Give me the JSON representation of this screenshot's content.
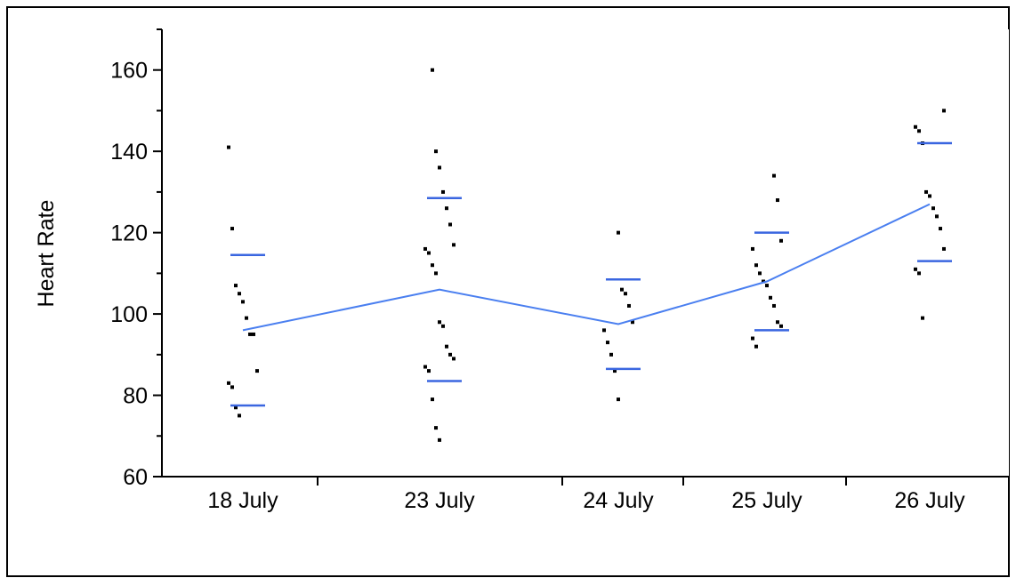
{
  "chart_data": {
    "type": "scatter",
    "title": "",
    "xlabel": "",
    "ylabel": "Heart Rate",
    "ylim": [
      60,
      170
    ],
    "yticks": [
      60,
      80,
      100,
      120,
      140,
      160
    ],
    "grid": false,
    "categories": [
      "18 July",
      "23 July",
      "24 July",
      "25 July",
      "26 July"
    ],
    "points": [
      {
        "category": "18 July",
        "values": [
          141,
          121,
          107,
          105,
          103,
          99,
          95,
          95,
          86,
          83,
          82,
          77,
          75
        ]
      },
      {
        "category": "23 July",
        "values": [
          160,
          140,
          136,
          130,
          126,
          122,
          117,
          116,
          115,
          112,
          110,
          98,
          97,
          92,
          90,
          89,
          87,
          86,
          79,
          72,
          69
        ]
      },
      {
        "category": "24 July",
        "values": [
          120,
          106,
          105,
          102,
          98,
          96,
          93,
          90,
          86,
          79
        ]
      },
      {
        "category": "25 July",
        "values": [
          134,
          128,
          118,
          116,
          112,
          110,
          108,
          107,
          104,
          102,
          98,
          97,
          94,
          92
        ]
      },
      {
        "category": "26 July",
        "values": [
          150,
          146,
          145,
          142,
          130,
          129,
          126,
          124,
          121,
          116,
          111,
          110,
          99
        ]
      }
    ],
    "series": [
      {
        "name": "",
        "kind": "mean-line",
        "color": "#4a7ff0",
        "values": [
          96,
          106,
          97.5,
          108,
          127
        ]
      },
      {
        "name": "",
        "kind": "upper-bar",
        "color": "#3a66e0",
        "values": [
          114.5,
          128.5,
          108.5,
          120,
          142
        ]
      },
      {
        "name": "",
        "kind": "lower-bar",
        "color": "#3a66e0",
        "values": [
          77.5,
          83.5,
          86.5,
          96,
          113
        ]
      }
    ],
    "colors": {
      "points": "#000000",
      "axis": "#000000",
      "frame": "#000000"
    }
  }
}
